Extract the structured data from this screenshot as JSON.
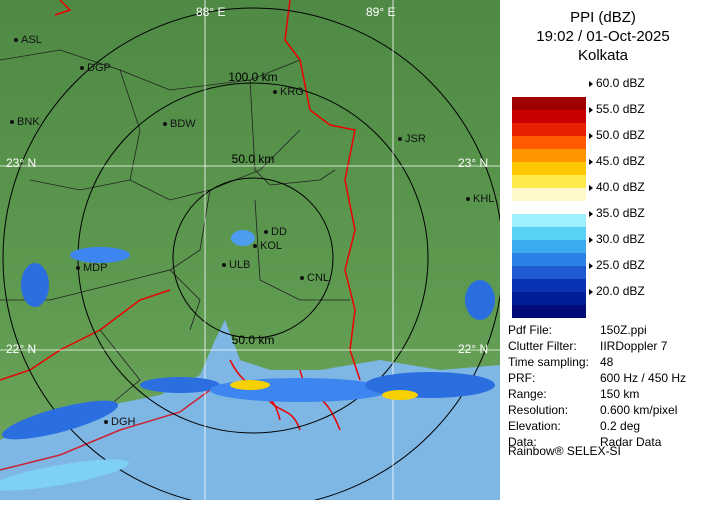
{
  "header": {
    "title": "PPI (dBZ)",
    "datetime": "19:02 / 01-Oct-2025",
    "site": "Kolkata"
  },
  "legend": [
    "60.0 dBZ",
    "55.0 dBZ",
    "50.0 dBZ",
    "45.0 dBZ",
    "40.0 dBZ",
    "35.0 dBZ",
    "30.0 dBZ",
    "25.0 dBZ",
    "20.0 dBZ"
  ],
  "info": [
    [
      "Pdf File:",
      "150Z.ppi"
    ],
    [
      "Clutter Filter:",
      "IIRDoppler 7"
    ],
    [
      "Time sampling:",
      "48"
    ],
    [
      "PRF:",
      "600 Hz / 450 Hz"
    ],
    [
      "Range:",
      "150 km"
    ],
    [
      "Resolution:",
      "0.600 km/pixel"
    ],
    [
      "Elevation:",
      "0.2 deg"
    ],
    [
      "Data:",
      "Radar Data"
    ]
  ],
  "footer": "Rainbow® SELEX-SI",
  "map": {
    "rings": [
      "50.0 km",
      "100.0 km",
      "50.0 km"
    ],
    "grid": [
      "88° E",
      "89° E",
      "23° N",
      "23° N",
      "22° N",
      "22° N"
    ],
    "cities": [
      "ASL",
      "DGP",
      "BNK",
      "BDW",
      "KRG",
      "JSR",
      "KHL",
      "DD",
      "KOL",
      "MDP",
      "ULB",
      "CNL",
      "DGH"
    ]
  }
}
